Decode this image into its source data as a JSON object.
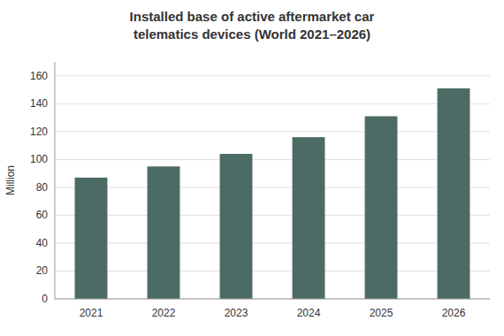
{
  "chart_data": {
    "type": "bar",
    "title": "Installed base of active aftermarket car\ntelematics devices (World 2021–2026)",
    "ylabel": "Million",
    "categories": [
      "2021",
      "2022",
      "2023",
      "2024",
      "2025",
      "2026"
    ],
    "values": [
      87,
      95,
      104,
      116,
      131,
      151
    ],
    "color": "#4d6b65",
    "ylim": [
      0,
      170
    ],
    "yticks": [
      0,
      20,
      40,
      60,
      80,
      100,
      120,
      140,
      160
    ],
    "grid": true
  }
}
